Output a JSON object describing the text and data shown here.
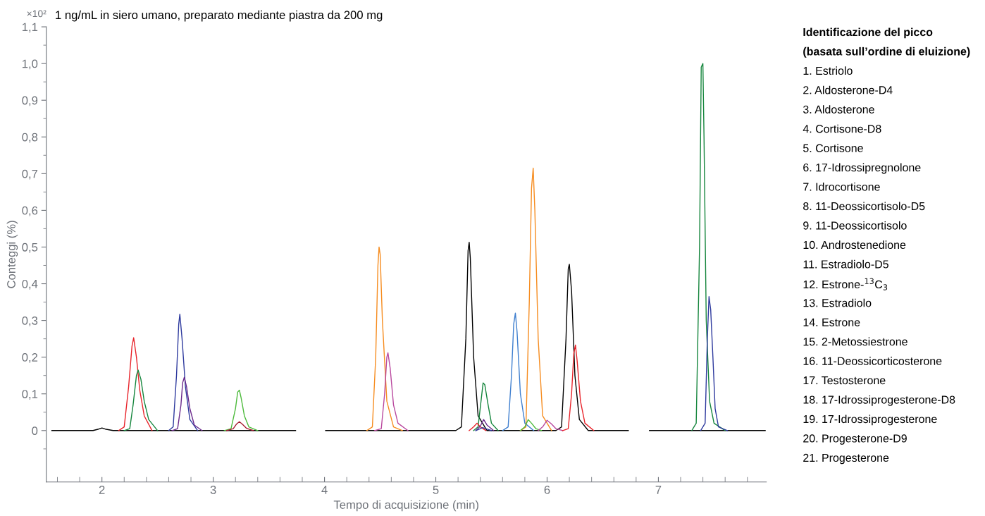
{
  "chart_data": {
    "type": "line",
    "title": "1 ng/mL in siero umano, preparato mediante piastra da 200 mg",
    "xlabel": "Tempo di acquisizione (min)",
    "ylabel": "Conteggi (%)",
    "xlim": [
      1.5,
      7.97
    ],
    "ylim": [
      -0.14,
      1.1
    ],
    "xticks": [
      {
        "value": 1.6,
        "label": null
      },
      {
        "value": 1.8,
        "label": null
      },
      2,
      {
        "value": 2.2,
        "label": null
      },
      {
        "value": 2.4,
        "label": null
      },
      {
        "value": 2.6,
        "label": null
      },
      {
        "value": 2.8,
        "label": null
      },
      3,
      {
        "value": 3.2,
        "label": null
      },
      {
        "value": 3.4,
        "label": null
      },
      {
        "value": 3.6,
        "label": null
      },
      {
        "value": 3.8,
        "label": null
      },
      4,
      {
        "value": 4.2,
        "label": null
      },
      {
        "value": 4.4,
        "label": null
      },
      {
        "value": 4.6,
        "label": null
      },
      {
        "value": 4.8,
        "label": null
      },
      5,
      {
        "value": 5.2,
        "label": null
      },
      {
        "value": 5.4,
        "label": null
      },
      {
        "value": 5.6,
        "label": null
      },
      {
        "value": 5.8,
        "label": null
      },
      6,
      {
        "value": 6.2,
        "label": null
      },
      {
        "value": 6.4,
        "label": null
      },
      {
        "value": 6.6,
        "label": null
      },
      {
        "value": 6.8,
        "label": null
      },
      7,
      {
        "value": 7.2,
        "label": null
      },
      {
        "value": 7.4,
        "label": null
      },
      {
        "value": 7.6,
        "label": null
      },
      {
        "value": 7.8,
        "label": null
      }
    ],
    "yticks": [
      {
        "value": -0.05,
        "label": null
      },
      0,
      {
        "value": 0.05,
        "label": null
      },
      {
        "value": 0.1,
        "label": "0,1"
      },
      {
        "value": 0.15,
        "label": null
      },
      {
        "value": 0.2,
        "label": "0,2"
      },
      {
        "value": 0.25,
        "label": null
      },
      {
        "value": 0.3,
        "label": "0,3"
      },
      {
        "value": 0.35,
        "label": null
      },
      {
        "value": 0.4,
        "label": "0,4"
      },
      {
        "value": 0.45,
        "label": null
      },
      {
        "value": 0.5,
        "label": "0,5"
      },
      {
        "value": 0.55,
        "label": null
      },
      {
        "value": 0.6,
        "label": "0,6"
      },
      {
        "value": 0.65,
        "label": null
      },
      {
        "value": 0.7,
        "label": "0,7"
      },
      {
        "value": 0.75,
        "label": null
      },
      {
        "value": 0.8,
        "label": "0,8"
      },
      {
        "value": 0.85,
        "label": null
      },
      {
        "value": 0.9,
        "label": "0,9"
      },
      {
        "value": 0.95,
        "label": null
      },
      {
        "value": 1.0,
        "label": "1,0"
      },
      {
        "value": 1.05,
        "label": null
      },
      {
        "value": 1.1,
        "label": "1,1"
      }
    ],
    "grid": false,
    "legend": false,
    "marker": "none",
    "line_style": "solid",
    "series": [
      {
        "color": "#000000",
        "x": [
          1.55,
          1.92,
          1.97,
          2.0,
          2.03,
          2.1,
          3.74,
          3.87,
          4.01,
          5.18,
          5.23,
          5.27,
          5.29,
          5.3,
          5.31,
          5.34,
          5.38,
          5.46,
          6.08,
          6.13,
          6.17,
          6.19,
          6.2,
          6.22,
          6.25,
          6.29,
          6.37,
          6.73,
          6.82,
          6.92,
          7.96
        ],
        "values": [
          0,
          0,
          0.004,
          0.007,
          0.004,
          0,
          0,
          null,
          0,
          0,
          0.01,
          0.25,
          0.49,
          0.513,
          0.47,
          0.2,
          0.04,
          0,
          0,
          0.01,
          0.25,
          0.44,
          0.453,
          0.38,
          0.15,
          0.03,
          0,
          0,
          null,
          0,
          0
        ]
      },
      {
        "color": "#e8232a",
        "x": [
          2.15,
          2.2,
          2.24,
          2.27,
          2.285,
          2.31,
          2.34,
          2.38,
          2.45
        ],
        "values": [
          0,
          0.01,
          0.12,
          0.23,
          0.253,
          0.2,
          0.11,
          0.04,
          0
        ]
      },
      {
        "color": "#14853c",
        "x": [
          2.2,
          2.25,
          2.28,
          2.31,
          2.325,
          2.35,
          2.38,
          2.42,
          2.5
        ],
        "values": [
          0,
          0.005,
          0.07,
          0.15,
          0.165,
          0.14,
          0.08,
          0.03,
          0
        ]
      },
      {
        "color": "#2e3a9e",
        "x": [
          2.6,
          2.64,
          2.67,
          2.69,
          2.7,
          2.72,
          2.75,
          2.79,
          2.86
        ],
        "values": [
          0,
          0.01,
          0.15,
          0.29,
          0.317,
          0.25,
          0.12,
          0.03,
          0
        ]
      },
      {
        "color": "#6b2a8c",
        "x": [
          2.63,
          2.68,
          2.71,
          2.725,
          2.74,
          2.76,
          2.79,
          2.83,
          2.9
        ],
        "values": [
          0,
          0.005,
          0.07,
          0.13,
          0.145,
          0.12,
          0.06,
          0.015,
          0
        ]
      },
      {
        "color": "#4cba3b",
        "x": [
          3.1,
          3.16,
          3.2,
          3.22,
          3.235,
          3.25,
          3.28,
          3.32,
          3.4
        ],
        "values": [
          0,
          0.005,
          0.06,
          0.105,
          0.11,
          0.09,
          0.04,
          0.01,
          0
        ]
      },
      {
        "color": "#a51c30",
        "x": [
          3.12,
          3.18,
          3.21,
          3.235,
          3.26,
          3.3,
          3.36
        ],
        "values": [
          0,
          0.005,
          0.018,
          0.024,
          0.018,
          0.006,
          0
        ]
      },
      {
        "color": "#f68c1f",
        "x": [
          4.38,
          4.43,
          4.46,
          4.48,
          4.49,
          4.5,
          4.52,
          4.56,
          4.62,
          4.7
        ],
        "values": [
          0,
          0.01,
          0.2,
          0.45,
          0.5,
          0.48,
          0.3,
          0.08,
          0.01,
          0
        ]
      },
      {
        "color": "#b9479e",
        "x": [
          4.45,
          4.51,
          4.54,
          4.56,
          4.57,
          4.59,
          4.62,
          4.66,
          4.75
        ],
        "values": [
          0,
          0.005,
          0.1,
          0.2,
          0.212,
          0.17,
          0.07,
          0.02,
          0
        ]
      },
      {
        "color": "#14853c",
        "x": [
          5.34,
          5.38,
          5.41,
          5.425,
          5.44,
          5.47,
          5.5,
          5.56
        ],
        "values": [
          0,
          0.01,
          0.09,
          0.13,
          0.125,
          0.07,
          0.02,
          0
        ]
      },
      {
        "color": "#e8232a",
        "x": [
          5.3,
          5.34,
          5.37,
          5.4,
          5.45
        ],
        "values": [
          0,
          0.01,
          0.02,
          0.01,
          0
        ]
      },
      {
        "color": "#6b2a8c",
        "x": [
          5.36,
          5.4,
          5.43,
          5.46,
          5.52
        ],
        "values": [
          0,
          0.012,
          0.03,
          0.015,
          0
        ]
      },
      {
        "color": "#2e3a9e",
        "x": [
          5.36,
          5.4,
          5.42,
          5.45,
          5.5
        ],
        "values": [
          0,
          0.005,
          0.008,
          0.005,
          0
        ]
      },
      {
        "color": "#3f7fcf",
        "x": [
          5.6,
          5.65,
          5.68,
          5.7,
          5.715,
          5.73,
          5.76,
          5.8,
          5.88
        ],
        "values": [
          0,
          0.01,
          0.15,
          0.29,
          0.32,
          0.27,
          0.1,
          0.02,
          0
        ]
      },
      {
        "color": "#f68c1f",
        "x": [
          5.76,
          5.81,
          5.84,
          5.86,
          5.875,
          5.89,
          5.92,
          5.96,
          6.04
        ],
        "values": [
          0,
          0.01,
          0.35,
          0.66,
          0.715,
          0.6,
          0.25,
          0.04,
          0
        ]
      },
      {
        "color": "#4cba3b",
        "x": [
          5.76,
          5.8,
          5.83,
          5.86,
          5.9,
          5.95
        ],
        "values": [
          0,
          0.01,
          0.03,
          0.02,
          0.005,
          0
        ]
      },
      {
        "color": "#b9479e",
        "x": [
          5.92,
          5.96,
          6.0,
          6.04,
          6.08,
          6.14
        ],
        "values": [
          0,
          0.01,
          0.028,
          0.018,
          0.005,
          0
        ]
      },
      {
        "color": "#e8232a",
        "x": [
          6.14,
          6.19,
          6.22,
          6.24,
          6.255,
          6.27,
          6.3,
          6.34,
          6.42
        ],
        "values": [
          0,
          0.005,
          0.1,
          0.21,
          0.233,
          0.19,
          0.08,
          0.02,
          0
        ]
      },
      {
        "color": "#14853c",
        "x": [
          7.3,
          7.34,
          7.37,
          7.385,
          7.4,
          7.41,
          7.43,
          7.46,
          7.5,
          7.6
        ],
        "values": [
          0,
          0.02,
          0.5,
          0.99,
          1.0,
          0.8,
          0.3,
          0.08,
          0.02,
          0
        ]
      },
      {
        "color": "#2e3a9e",
        "x": [
          7.38,
          7.42,
          7.44,
          7.455,
          7.47,
          7.49,
          7.51,
          7.54,
          7.62
        ],
        "values": [
          0,
          0.02,
          0.25,
          0.365,
          0.33,
          0.2,
          0.06,
          0.01,
          0
        ]
      }
    ],
    "annotations": [
      "×10²",
      "Identificazione del picco",
      "(basata sull’ordine di eluizione)",
      "1. Estriolo",
      "2. Aldosterone-D4",
      "3. Aldosterone",
      "4. Cortisone-D8",
      "5. Cortisone",
      "6. 17-Idrossipregnolone",
      "7. Idrocortisone",
      "8. 11-Deossicortisolo-D5",
      "9. 11-Deossicortisolo",
      "10. Androstenedione",
      "11. Estradiolo-D5",
      "12. Estrone-$^{13}$C$_{3}$",
      "13. Estradiolo",
      "14. Estrone",
      "15. 2-Metossiestrone",
      "16. 11-Deossicorticosterone",
      "17. Testosterone",
      "18. 17-Idrossiprogesterone-D8",
      "19. 17-Idrossiprogesterone",
      "20. Progesterone-D9",
      "21. Progesterone"
    ]
  }
}
